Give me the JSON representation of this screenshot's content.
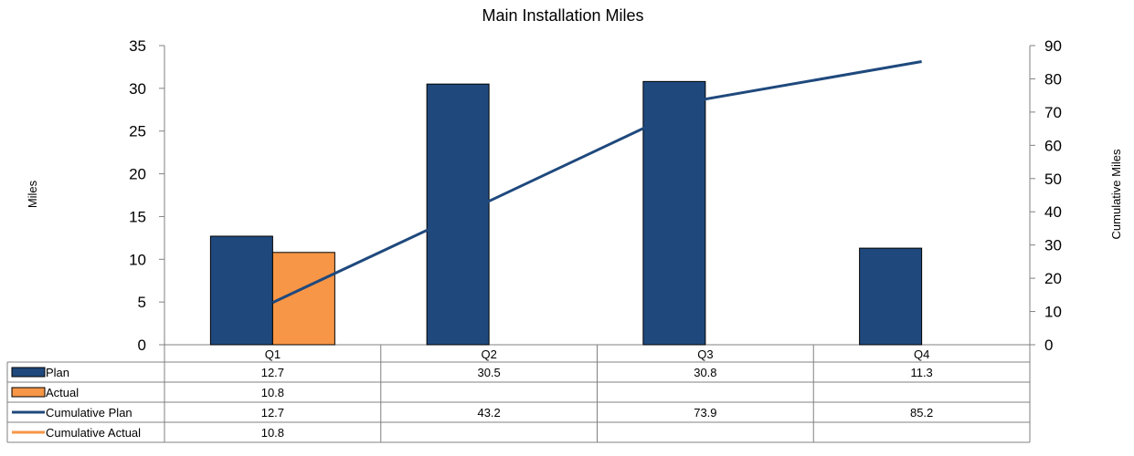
{
  "chart_data": {
    "type": "bar",
    "title": "Main Installation Miles",
    "ylabel": "Miles",
    "y2label": "Cumulative Miles",
    "categories": [
      "Q1",
      "Q2",
      "Q3",
      "Q4"
    ],
    "ylim": [
      0,
      35
    ],
    "y2lim": [
      0,
      90
    ],
    "yticks": [
      "0",
      "5",
      "10",
      "15",
      "20",
      "25",
      "30",
      "35"
    ],
    "y2ticks": [
      "0",
      "10",
      "20",
      "30",
      "40",
      "50",
      "60",
      "70",
      "80",
      "90"
    ],
    "grid": false,
    "legend": "data-table",
    "series": [
      {
        "name": "Plan",
        "type": "bar",
        "axis": "left",
        "color": "#1F497D",
        "values": [
          12.7,
          30.5,
          30.8,
          11.3
        ],
        "labels": [
          "12.7",
          "30.5",
          "30.8",
          "11.3"
        ]
      },
      {
        "name": "Actual",
        "type": "bar",
        "axis": "left",
        "color": "#F79646",
        "values": [
          10.8,
          null,
          null,
          null
        ],
        "labels": [
          "10.8",
          "",
          "",
          ""
        ]
      },
      {
        "name": "Cumulative Plan",
        "type": "line",
        "axis": "right",
        "color": "#1F497D",
        "values": [
          12.7,
          43.2,
          73.9,
          85.2
        ],
        "labels": [
          "12.7",
          "43.2",
          "73.9",
          "85.2"
        ]
      },
      {
        "name": "Cumulative Actual",
        "type": "line",
        "axis": "right",
        "color": "#F79646",
        "values": [
          10.8,
          null,
          null,
          null
        ],
        "labels": [
          "10.8",
          "",
          "",
          ""
        ]
      }
    ]
  }
}
